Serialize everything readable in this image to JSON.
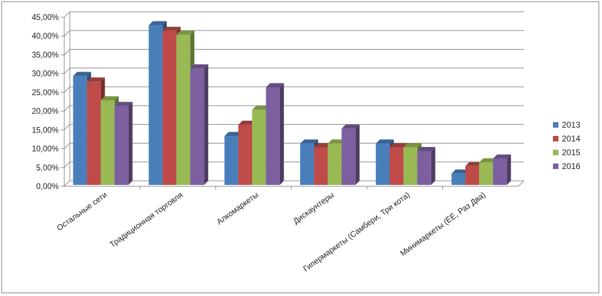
{
  "chart_data": {
    "type": "bar",
    "categories": [
      "Остальные сети",
      "Традиционная  торговля",
      "Алкомаркеты",
      "Дискаунтеры",
      "Гипермаркеты (Самбери, Три кота)",
      "Минимаркеты (ЁЁ, Раз Два)"
    ],
    "series": [
      {
        "name": "2013",
        "color": "#4a7ebb",
        "values": [
          29,
          42.5,
          13,
          11,
          11,
          3
        ]
      },
      {
        "name": "2014",
        "color": "#be4b48",
        "values": [
          27.5,
          41,
          16,
          10,
          10,
          5
        ]
      },
      {
        "name": "2015",
        "color": "#98b954",
        "values": [
          22.5,
          40,
          20,
          11,
          10,
          6
        ]
      },
      {
        "name": "2016",
        "color": "#7d60a0",
        "values": [
          21,
          31,
          26,
          15,
          9,
          7
        ]
      }
    ],
    "ylim": [
      0,
      45
    ],
    "yticks": [
      "0,00%",
      "5,00%",
      "10,00%",
      "15,00%",
      "20,00%",
      "25,00%",
      "30,00%",
      "35,00%",
      "40,00%",
      "45,00%"
    ],
    "grid": true,
    "legend_position": "right",
    "title": "",
    "xlabel": "",
    "ylabel": ""
  }
}
